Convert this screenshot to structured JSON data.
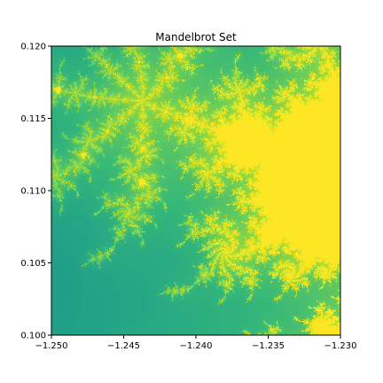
{
  "chart_data": {
    "type": "heatmap",
    "title": "Mandelbrot Set",
    "xlabel": "",
    "ylabel": "",
    "xlim": [
      -1.25,
      -1.23
    ],
    "ylim": [
      0.1,
      0.12
    ],
    "x_ticks": [
      -1.25,
      -1.245,
      -1.24,
      -1.235,
      -1.23
    ],
    "x_tick_labels": [
      "−1.250",
      "−1.245",
      "−1.240",
      "−1.235",
      "−1.230"
    ],
    "y_ticks": [
      0.1,
      0.105,
      0.11,
      0.115,
      0.12
    ],
    "y_tick_labels": [
      "0.100",
      "0.105",
      "0.110",
      "0.115",
      "0.120"
    ],
    "grid": false,
    "colormap": "viridis",
    "colormap_stops": [
      "#440154",
      "#482878",
      "#3e4989",
      "#31688e",
      "#26828e",
      "#1f9e89",
      "#35b779",
      "#6ece58",
      "#b5de2b",
      "#fde725"
    ],
    "max_iterations": 256,
    "data_description": "Mandelbrot escape-iteration counts over the complex plane (x = Re, y = Im); points inside the set are colored at the top of the colormap"
  }
}
